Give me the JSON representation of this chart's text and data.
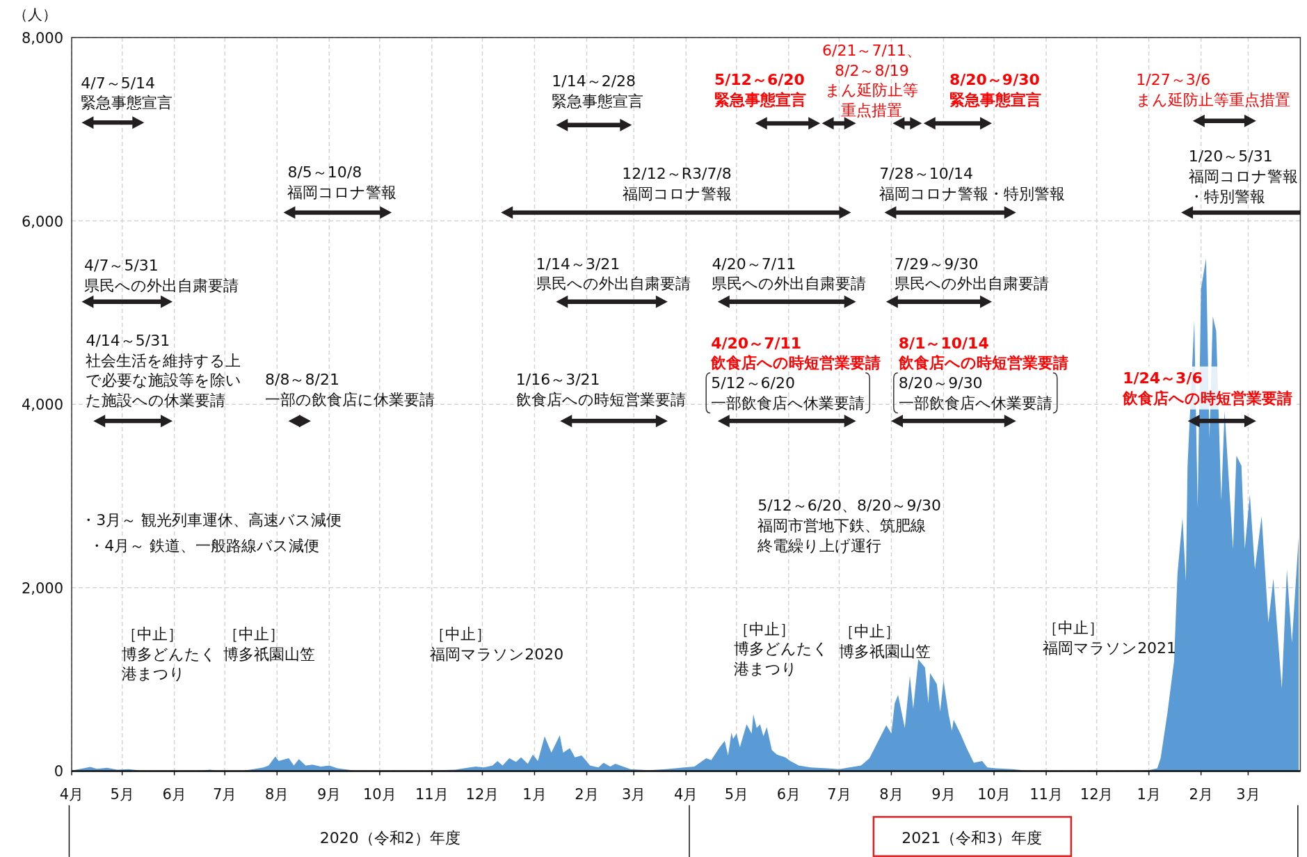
{
  "chart_data": {
    "type": "area",
    "ylabel": "（人）",
    "color": "#5b9bd5",
    "grid": true,
    "xlim": [
      "2020-04-01",
      "2022-04-01"
    ],
    "ylim": [
      0,
      8000
    ],
    "yticks": [
      0,
      {
        "value": 2000,
        "label": "2,000"
      },
      {
        "value": 4000,
        "label": "4,000"
      },
      {
        "value": 6000,
        "label": "6,000"
      },
      {
        "value": 8000,
        "label": "8,000"
      }
    ],
    "xticks": [
      {
        "value": "2020-04-01",
        "label": "4月"
      },
      {
        "value": "2020-05-01",
        "label": "5月"
      },
      {
        "value": "2020-06-01",
        "label": "6月"
      },
      {
        "value": "2020-07-01",
        "label": "7月"
      },
      {
        "value": "2020-08-01",
        "label": "8月"
      },
      {
        "value": "2020-09-01",
        "label": "9月"
      },
      {
        "value": "2020-10-01",
        "label": "10月"
      },
      {
        "value": "2020-11-01",
        "label": "11月"
      },
      {
        "value": "2020-12-01",
        "label": "12月"
      },
      {
        "value": "2021-01-01",
        "label": "1月"
      },
      {
        "value": "2021-02-01",
        "label": "2月"
      },
      {
        "value": "2021-03-01",
        "label": "3月"
      },
      {
        "value": "2021-04-01",
        "label": "4月"
      },
      {
        "value": "2021-05-01",
        "label": "5月"
      },
      {
        "value": "2021-06-01",
        "label": "6月"
      },
      {
        "value": "2021-07-01",
        "label": "7月"
      },
      {
        "value": "2021-08-01",
        "label": "8月"
      },
      {
        "value": "2021-09-01",
        "label": "9月"
      },
      {
        "value": "2021-10-01",
        "label": "10月"
      },
      {
        "value": "2021-11-01",
        "label": "11月"
      },
      {
        "value": "2021-12-01",
        "label": "12月"
      },
      {
        "value": "2022-01-01",
        "label": "1月"
      },
      {
        "value": "2022-02-01",
        "label": "2月"
      },
      {
        "value": "2022-03-01",
        "label": "3月"
      }
    ],
    "x": [
      "2020-04-01",
      "2020-04-08",
      "2020-04-12",
      "2020-04-16",
      "2020-04-22",
      "2020-04-28",
      "2020-05-05",
      "2020-05-12",
      "2020-05-25",
      "2020-06-15",
      "2020-06-22",
      "2020-06-28",
      "2020-07-10",
      "2020-07-18",
      "2020-07-24",
      "2020-07-27",
      "2020-07-31",
      "2020-08-02",
      "2020-08-06",
      "2020-08-08",
      "2020-08-11",
      "2020-08-14",
      "2020-08-18",
      "2020-08-22",
      "2020-08-27",
      "2020-09-01",
      "2020-09-06",
      "2020-09-16",
      "2020-10-10",
      "2020-10-25",
      "2020-11-05",
      "2020-11-15",
      "2020-11-20",
      "2020-11-27",
      "2020-12-02",
      "2020-12-07",
      "2020-12-10",
      "2020-12-13",
      "2020-12-17",
      "2020-12-21",
      "2020-12-24",
      "2020-12-28",
      "2020-12-31",
      "2021-01-03",
      "2021-01-07",
      "2021-01-11",
      "2021-01-16",
      "2021-01-18",
      "2021-01-22",
      "2021-01-25",
      "2021-01-29",
      "2021-02-03",
      "2021-02-08",
      "2021-02-11",
      "2021-02-15",
      "2021-02-18",
      "2021-02-27",
      "2021-03-10",
      "2021-03-20",
      "2021-03-31",
      "2021-04-06",
      "2021-04-13",
      "2021-04-16",
      "2021-04-21",
      "2021-04-24",
      "2021-04-26",
      "2021-04-28",
      "2021-04-29",
      "2021-05-01",
      "2021-05-03",
      "2021-05-07",
      "2021-05-10",
      "2021-05-11",
      "2021-05-13",
      "2021-05-15",
      "2021-05-17",
      "2021-05-19",
      "2021-05-22",
      "2021-05-25",
      "2021-05-30",
      "2021-06-02",
      "2021-06-07",
      "2021-06-14",
      "2021-06-24",
      "2021-07-01",
      "2021-07-07",
      "2021-07-14",
      "2021-07-19",
      "2021-07-24",
      "2021-07-29",
      "2021-08-01",
      "2021-08-03",
      "2021-08-05",
      "2021-08-09",
      "2021-08-12",
      "2021-08-14",
      "2021-08-17",
      "2021-08-21",
      "2021-08-23",
      "2021-08-24",
      "2021-08-28",
      "2021-08-30",
      "2021-09-01",
      "2021-09-04",
      "2021-09-06",
      "2021-09-07",
      "2021-09-11",
      "2021-09-15",
      "2021-09-19",
      "2021-09-24",
      "2021-09-27",
      "2021-10-02",
      "2021-10-12",
      "2021-10-20",
      "2021-11-10",
      "2021-12-10",
      "2021-12-28",
      "2022-01-01",
      "2022-01-06",
      "2022-01-08",
      "2022-01-12",
      "2022-01-16",
      "2022-01-18",
      "2022-01-21",
      "2022-01-23",
      "2022-01-24",
      "2022-01-28",
      "2022-01-30",
      "2022-02-01",
      "2022-02-04",
      "2022-02-06",
      "2022-02-08",
      "2022-02-10",
      "2022-02-13",
      "2022-02-15",
      "2022-02-20",
      "2022-02-22",
      "2022-02-25",
      "2022-02-27",
      "2022-03-02",
      "2022-03-05",
      "2022-03-09",
      "2022-03-13",
      "2022-03-16",
      "2022-03-21",
      "2022-03-24",
      "2022-03-27",
      "2022-03-31"
    ],
    "values": [
      5,
      30,
      45,
      25,
      35,
      15,
      20,
      5,
      0,
      0,
      15,
      0,
      0,
      20,
      40,
      60,
      160,
      110,
      130,
      140,
      60,
      130,
      60,
      70,
      50,
      60,
      30,
      5,
      3,
      2,
      10,
      15,
      30,
      50,
      40,
      60,
      110,
      60,
      140,
      100,
      150,
      80,
      180,
      110,
      380,
      200,
      390,
      200,
      250,
      150,
      170,
      60,
      40,
      90,
      50,
      80,
      20,
      10,
      20,
      40,
      50,
      140,
      120,
      260,
      330,
      170,
      420,
      350,
      410,
      260,
      510,
      410,
      620,
      470,
      510,
      380,
      480,
      230,
      180,
      150,
      110,
      60,
      40,
      30,
      20,
      40,
      60,
      140,
      320,
      500,
      410,
      740,
      830,
      470,
      1040,
      680,
      1220,
      1130,
      740,
      1070,
      950,
      650,
      990,
      620,
      440,
      560,
      410,
      240,
      90,
      110,
      40,
      30,
      20,
      6,
      3,
      3,
      5,
      10,
      30,
      140,
      630,
      1200,
      2150,
      2760,
      2070,
      3330,
      4920,
      2870,
      5260,
      5590,
      3630,
      4960,
      4800,
      2950,
      3930,
      2420,
      3440,
      3330,
      2420,
      3020,
      2200,
      2780,
      1620,
      2100,
      900,
      2200,
      1400,
      2550
    ],
    "annotations": [
      "・3月～ 観光列車運休、高速バス減便",
      "・4月～ 鉄道、一般路線バス減便",
      "5/12～6/20、8/20～9/30\n福岡市営地下鉄、筑肥線終電繰り上げ運行",
      "［中止］博多どんたく港まつり",
      "［中止］博多祇園山笠",
      "［中止］福岡マラソン2020",
      "［中止］博多どんたく港まつり",
      "［中止］博多祇園山笠",
      "［中止］福岡マラソン2021",
      "5/12～6/20\n一部飲食店へ休業要請",
      "8/20～9/30\n一部飲食店へ休業要請",
      "2020（令和2）年度",
      "2021（令和3）年度",
      "4/7～5/14\n緊急事態宣言",
      "1/14～2/28\n緊急事態宣言",
      "**5/12～6/20**\n**緊急事態宣言**",
      "6/21～7/11、\n8/2～8/19\nまん延防止等重点措置",
      "**8/20～9/30**\n**緊急事態宣言**",
      "1/27～3/6\nまん延防止等重点措置",
      "8/5～10/8\n福岡コロナ警報",
      "12/12～R3/7/8\n福岡コロナ警報",
      "7/28～10/14\n福岡コロナ警報・特別警報",
      "1/20～5/31\n福岡コロナ警報・特別警報",
      "4/7～5/31\n県民への外出自粛要請",
      "1/14～3/21\n県民への外出自粛要請",
      "4/20～7/11\n県民への外出自粛要請",
      "7/29～9/30\n県民への外出自粛要請",
      "4/14～5/31\n社会生活を維持する上で必要な施設等を除いた施設への休業要請",
      "8/8～8/21\n一部の飲食店に休業要請",
      "1/16～3/21\n飲食店への時短営業要請",
      "**4/20～7/11**\n**飲食店への時短営業要請**",
      "**8/1～10/14**\n**飲食店への時短営業要請**",
      "**1/24～3/6**\n**飲食店への時短営業要請**"
    ]
  }
}
